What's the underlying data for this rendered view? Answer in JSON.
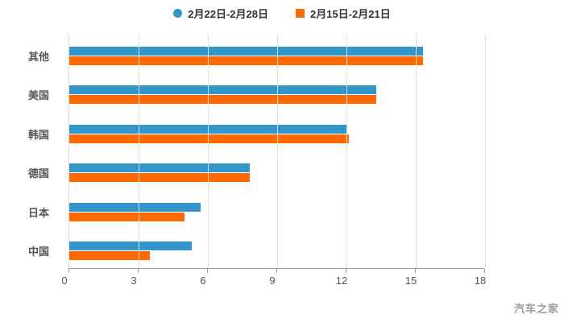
{
  "legend_position": "top",
  "watermark": "汽车之家",
  "colors": {
    "series_blue": "#3296cb",
    "series_orange": "#ff6900",
    "grid": "#e0e0e0",
    "axis": "#999999",
    "tick_label": "#555555",
    "category_label": "#555555",
    "legend_label": "#333333",
    "watermark": "#9a9a9a",
    "background": "#ffffff"
  },
  "chart_data": {
    "type": "bar",
    "orientation": "horizontal",
    "title": "",
    "xlabel": "",
    "ylabel": "",
    "categories": [
      "其他",
      "美国",
      "韩国",
      "德国",
      "日本",
      "中国"
    ],
    "series": [
      {
        "name": "2月22日-2月28日",
        "marker": "circle",
        "color": "#3296cb",
        "values": [
          15.3,
          13.3,
          12.0,
          7.8,
          5.7,
          5.3
        ]
      },
      {
        "name": "2月15日-2月21日",
        "marker": "square",
        "color": "#ff6900",
        "values": [
          15.3,
          13.3,
          12.1,
          7.8,
          5.0,
          3.5
        ]
      }
    ],
    "xlim": [
      0,
      18
    ],
    "xticks": [
      0,
      3,
      6,
      9,
      12,
      15,
      18
    ],
    "grid": true,
    "legend_position": "top"
  }
}
